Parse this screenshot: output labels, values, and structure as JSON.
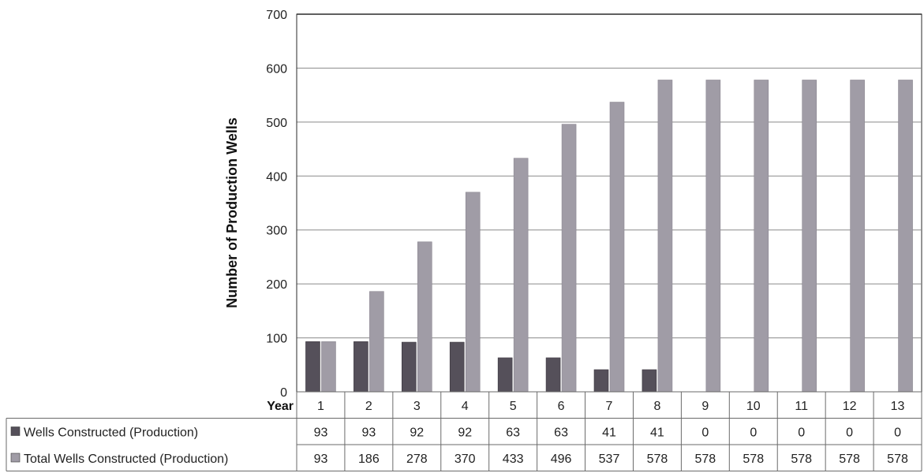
{
  "chart_data": {
    "type": "bar",
    "ylabel": "Number of Production Wells",
    "xlabel": "Year",
    "ylim": [
      0,
      700
    ],
    "yticks": [
      0,
      100,
      200,
      300,
      400,
      500,
      600,
      700
    ],
    "grid": true,
    "categories": [
      "1",
      "2",
      "3",
      "4",
      "5",
      "6",
      "7",
      "8",
      "9",
      "10",
      "11",
      "12",
      "13"
    ],
    "series": [
      {
        "name": "Wells Constructed (Production)",
        "color": "#55505a",
        "values": [
          93,
          93,
          92,
          92,
          63,
          63,
          41,
          41,
          0,
          0,
          0,
          0,
          0
        ],
        "table_values": [
          "93",
          "93",
          "92",
          "92",
          "63",
          "63",
          "41",
          "41",
          "0",
          "0",
          "0",
          "0",
          "0"
        ]
      },
      {
        "name": "Total Wells Constructed (Production)",
        "color": "#a09ca6",
        "values": [
          93,
          186,
          278,
          370,
          433,
          496,
          537,
          578,
          578,
          578,
          578,
          578,
          578
        ],
        "table_values": [
          "93",
          "186",
          "278",
          "370",
          "433",
          "496",
          "537",
          "578",
          "578",
          "578",
          "578",
          "578",
          "578"
        ]
      }
    ],
    "legend": "data-table"
  }
}
